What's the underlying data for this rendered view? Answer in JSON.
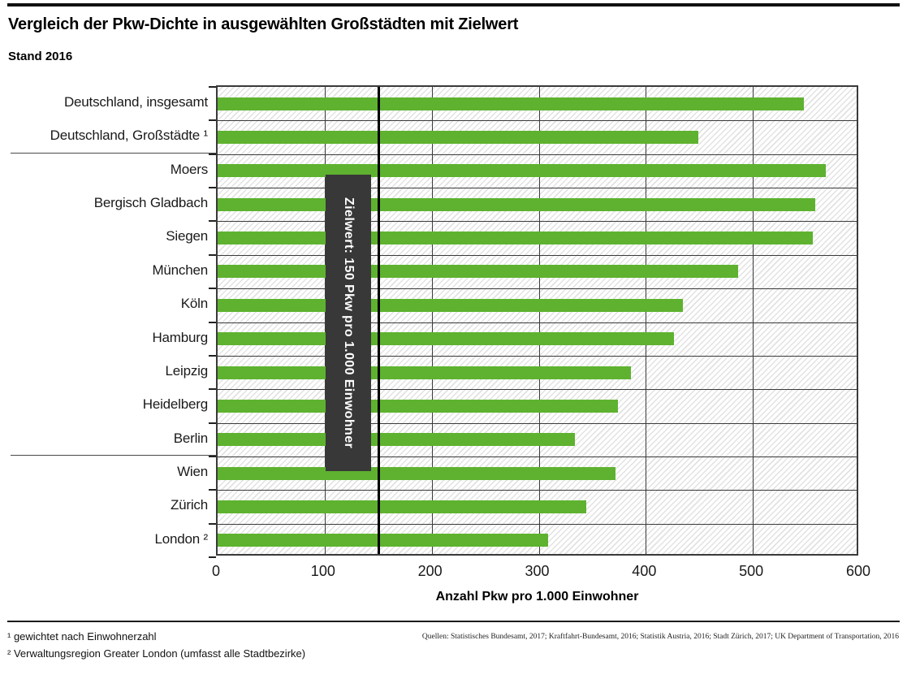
{
  "header": {
    "title": "Vergleich der Pkw-Dichte in ausgewählten Großstädten mit Zielwert",
    "subtitle": "Stand 2016"
  },
  "chart_data": {
    "type": "bar",
    "orientation": "horizontal",
    "title": "Vergleich der Pkw-Dichte in ausgewählten Großstädten mit Zielwert",
    "subtitle": "Stand 2016",
    "categories": [
      "Deutschland, insgesamt",
      "Deutschland, Großstädte ¹",
      "Moers",
      "Bergisch Gladbach",
      "Siegen",
      "München",
      "Köln",
      "Hamburg",
      "Leipzig",
      "Heidelberg",
      "Berlin",
      "Wien",
      "Zürich",
      "London ²"
    ],
    "values": [
      548,
      449,
      568,
      558,
      556,
      486,
      435,
      426,
      386,
      374,
      334,
      372,
      344,
      309
    ],
    "xlabel": "Anzahl Pkw pro 1.000 Einwohner",
    "ylabel": "",
    "xlim": [
      0,
      600
    ],
    "xticks": [
      0,
      100,
      200,
      300,
      400,
      500,
      600
    ],
    "gridlines": [
      100,
      200,
      300,
      400,
      500
    ],
    "grid": true,
    "legend": false,
    "target": {
      "value": 150,
      "label": "Zielwert: 150 Pkw pro 1.000 Einwohner"
    },
    "group_separators_after": [
      1,
      10
    ],
    "bar_color": "#5eb22f",
    "target_box_color": "#383838",
    "target_line_color": "#000000"
  },
  "footnotes": [
    "¹ gewichtet nach Einwohnerzahl",
    "² Verwaltungsregion Greater London (umfasst alle Stadtbezirke)"
  ],
  "sources": "Quellen: Statistisches Bundesamt, 2017; Kraftfahrt-Bundesamt, 2016; Statistik Austria, 2016; Stadt Zürich, 2017; UK Department of Transportation, 2016"
}
